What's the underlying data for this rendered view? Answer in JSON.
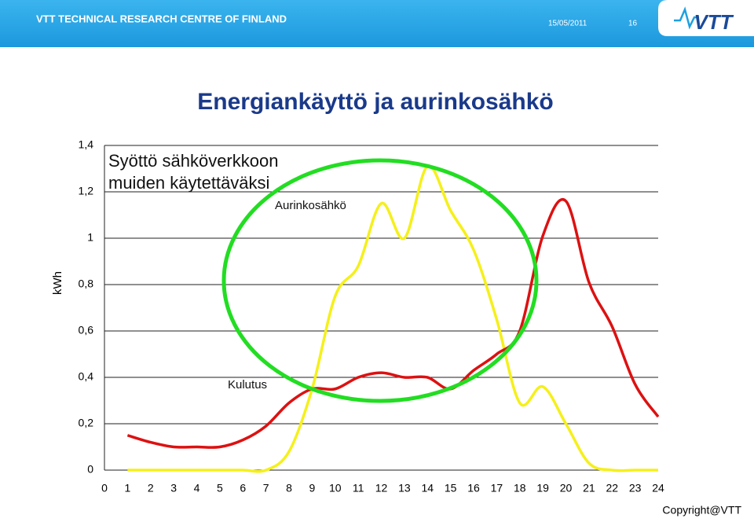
{
  "header": {
    "organization": "VTT TECHNICAL RESEARCH CENTRE OF FINLAND",
    "date": "15/05/2011",
    "page": "16",
    "logo": "VTT"
  },
  "footer": "Copyright@VTT",
  "chart_data": {
    "type": "line",
    "title": "Energiankäyttö ja aurinkosähkö",
    "ylabel": "kWh",
    "annotations": [
      "Syöttö sähköverkkoon",
      "muiden käytettäväksi",
      "Aurinkosähkö",
      "Kulutus"
    ],
    "x": [
      1,
      2,
      3,
      4,
      5,
      6,
      7,
      8,
      9,
      10,
      11,
      12,
      13,
      14,
      15,
      16,
      17,
      18,
      19,
      20,
      21,
      22,
      23,
      24
    ],
    "series": [
      {
        "name": "Kulutus",
        "color": "#dd1111",
        "values": [
          0.15,
          0.12,
          0.1,
          0.1,
          0.1,
          0.13,
          0.19,
          0.29,
          0.35,
          0.35,
          0.4,
          0.42,
          0.4,
          0.4,
          0.35,
          0.43,
          0.5,
          0.6,
          1.01,
          1.16,
          0.81,
          0.62,
          0.37,
          0.23
        ]
      },
      {
        "name": "Aurinkosähkö",
        "color": "#f5f01a",
        "values": [
          0,
          0,
          0,
          0,
          0,
          0,
          0,
          0.08,
          0.35,
          0.75,
          0.88,
          1.15,
          1.0,
          1.31,
          1.12,
          0.95,
          0.65,
          0.29,
          0.36,
          0.2,
          0.03,
          0,
          0,
          0
        ]
      }
    ],
    "xlim": [
      0,
      24
    ],
    "xticks": [
      0,
      1,
      2,
      3,
      4,
      5,
      6,
      7,
      8,
      9,
      10,
      11,
      12,
      13,
      14,
      15,
      16,
      17,
      18,
      19,
      20,
      21,
      22,
      23,
      24
    ],
    "ylim": [
      0,
      1.4
    ],
    "yticks": [
      0,
      {
        "value": 0.2,
        "label": "0,2"
      },
      {
        "value": 0.4,
        "label": "0,4"
      },
      {
        "value": 0.6,
        "label": "0,6"
      },
      {
        "value": 0.8,
        "label": "0,8"
      },
      1,
      {
        "value": 1.2,
        "label": "1,2"
      },
      {
        "value": 1.4,
        "label": "1,4"
      }
    ],
    "grid": true
  }
}
